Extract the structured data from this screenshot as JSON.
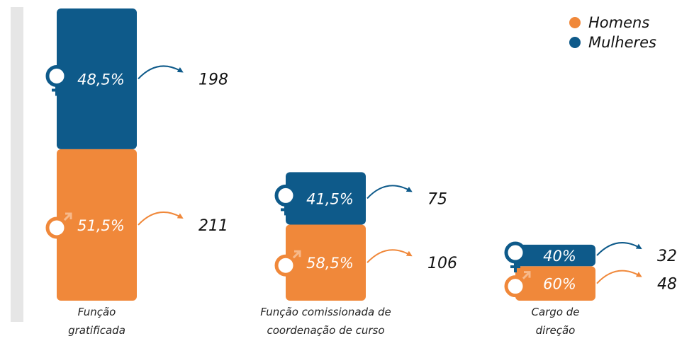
{
  "chart_data": {
    "type": "bar",
    "categories": [
      "Função gratificada",
      "Função comissionada de coordenação de curso",
      "Cargo de direção"
    ],
    "series": [
      {
        "name": "Homens",
        "color": "#f0883a",
        "values": [
          211,
          106,
          48
        ],
        "percent_labels": [
          "51,5%",
          "58,5%",
          "60%"
        ]
      },
      {
        "name": "Mulheres",
        "color": "#0e5a8a",
        "values": [
          198,
          75,
          32
        ],
        "percent_labels": [
          "48,5%",
          "41,5%",
          "40%"
        ]
      }
    ],
    "stacked": true
  }
}
